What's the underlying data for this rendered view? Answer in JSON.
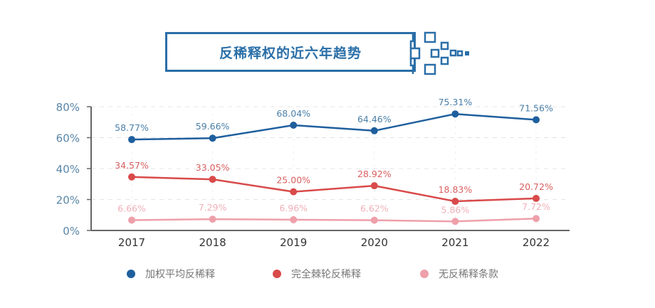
{
  "chart_data": {
    "type": "line",
    "title": "反稀释权的近六年趋势",
    "categories": [
      "2017",
      "2018",
      "2019",
      "2020",
      "2021",
      "2022"
    ],
    "ylim": [
      0,
      80
    ],
    "yticks": [
      "0%",
      "20%",
      "40%",
      "60%",
      "80%"
    ],
    "grid": true,
    "legend_placement": "bottom",
    "series": [
      {
        "name": "加权平均反稀释",
        "color": "#1f5f9e",
        "label_color": "#4a7fa8",
        "values": [
          58.77,
          59.66,
          68.04,
          64.46,
          75.31,
          71.56
        ],
        "labels": [
          "58.77%",
          "59.66%",
          "68.04%",
          "64.46%",
          "75.31%",
          "71.56%"
        ]
      },
      {
        "name": "完全棘轮反稀释",
        "color": "#d94a4a",
        "label_color": "#d9605f",
        "values": [
          34.57,
          33.05,
          25.0,
          28.92,
          18.83,
          20.72
        ],
        "labels": [
          "34.57%",
          "33.05%",
          "25.00%",
          "28.92%",
          "18.83%",
          "20.72%"
        ]
      },
      {
        "name": "无反稀释条款",
        "color": "#eea0aa",
        "label_color": "#efb0b8",
        "values": [
          6.66,
          7.29,
          6.96,
          6.62,
          5.86,
          7.72
        ],
        "labels": [
          "6.66%",
          "7.29%",
          "6.96%",
          "6.62%",
          "5.86%",
          "7.72%"
        ]
      }
    ]
  }
}
